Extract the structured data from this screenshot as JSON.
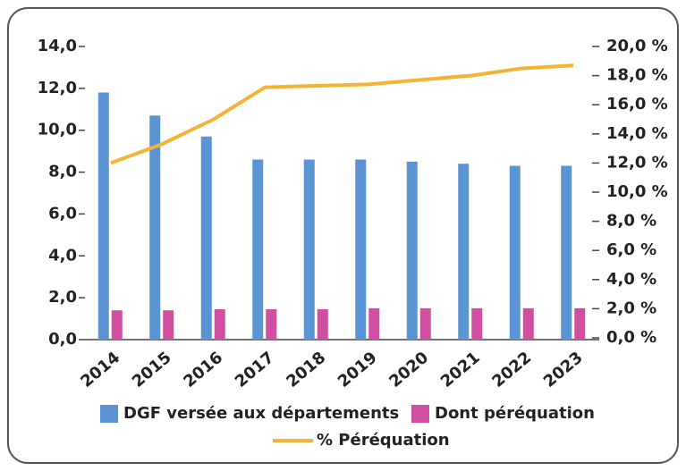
{
  "chart_data": {
    "type": "bar",
    "categories": [
      "2014",
      "2015",
      "2016",
      "2017",
      "2018",
      "2019",
      "2020",
      "2021",
      "2022",
      "2023"
    ],
    "series": [
      {
        "name": "DGF versée aux départements",
        "color": "#5b94d3",
        "type": "bar",
        "values": [
          11.8,
          10.7,
          9.7,
          8.6,
          8.6,
          8.6,
          8.5,
          8.4,
          8.3,
          8.3
        ]
      },
      {
        "name": "Dont péréquation",
        "color": "#d04fa0",
        "type": "bar",
        "values": [
          1.4,
          1.4,
          1.45,
          1.45,
          1.45,
          1.5,
          1.5,
          1.5,
          1.5,
          1.5
        ]
      },
      {
        "name": "% Péréquation",
        "color": "#f5b335",
        "type": "line",
        "axis": "y2",
        "values": [
          12.0,
          13.3,
          15.0,
          17.2,
          17.3,
          17.4,
          17.7,
          18.0,
          18.5,
          18.7
        ]
      }
    ],
    "ylim": [
      0,
      14
    ],
    "yticks": [
      {
        "value": 0,
        "label": "0,0"
      },
      {
        "value": 2,
        "label": "2,0"
      },
      {
        "value": 4,
        "label": "4,0"
      },
      {
        "value": 6,
        "label": "6,0"
      },
      {
        "value": 8,
        "label": "8,0"
      },
      {
        "value": 10,
        "label": "10,0"
      },
      {
        "value": 12,
        "label": "12,0"
      },
      {
        "value": 14,
        "label": "14,0"
      }
    ],
    "y2lim": [
      0,
      20
    ],
    "y2ticks": [
      {
        "value": 0,
        "label": "0,0 %"
      },
      {
        "value": 2,
        "label": "2,0 %"
      },
      {
        "value": 4,
        "label": "4,0 %"
      },
      {
        "value": 6,
        "label": "6,0 %"
      },
      {
        "value": 8,
        "label": "8,0 %"
      },
      {
        "value": 10,
        "label": "10,0 %"
      },
      {
        "value": 12,
        "label": "12,0 %"
      },
      {
        "value": 14,
        "label": "14,0 %"
      },
      {
        "value": 16,
        "label": "16,0 %"
      },
      {
        "value": 18,
        "label": "18,0 %"
      },
      {
        "value": 20,
        "label": "20,0 %"
      }
    ],
    "grid": false
  }
}
